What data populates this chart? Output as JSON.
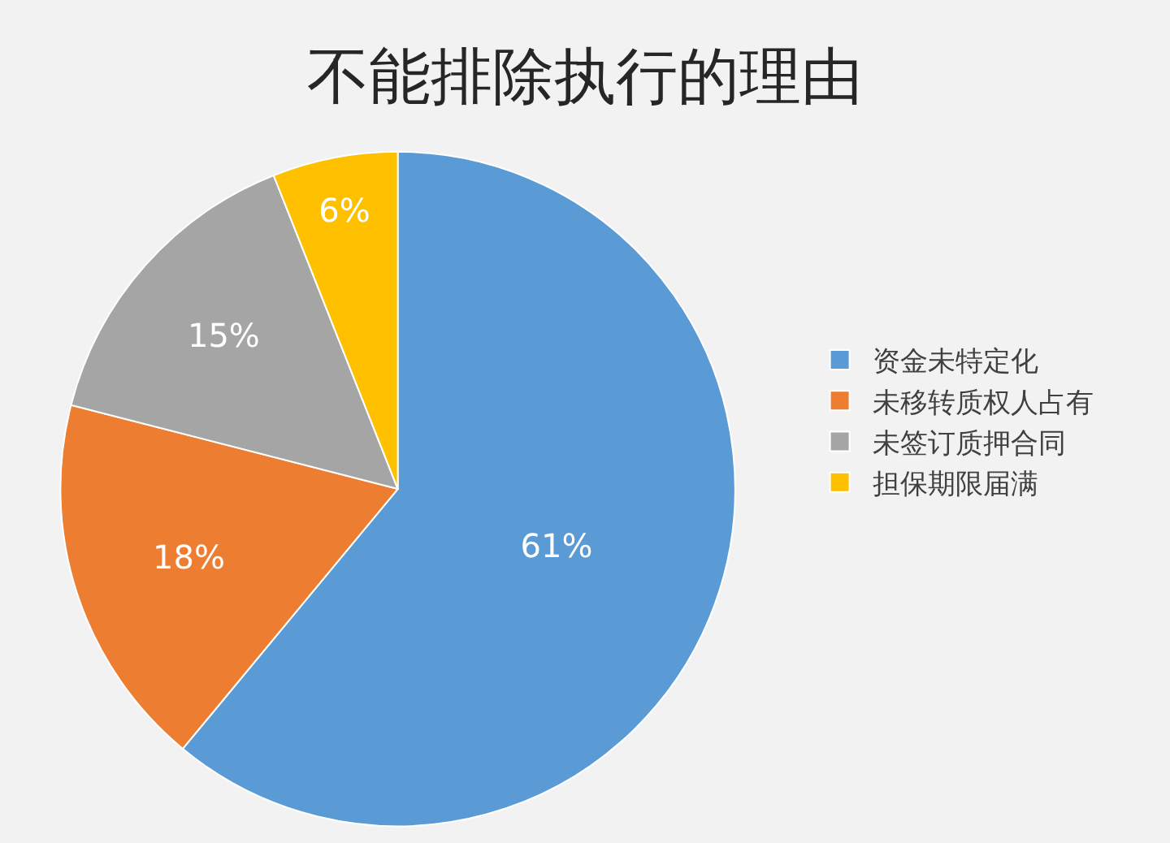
{
  "chart_data": {
    "type": "pie",
    "title": "不能排除执行的理由",
    "categories": [
      "资金未特定化",
      "未移转质权人占有",
      "未签订质押合同",
      "担保期限届满"
    ],
    "values": [
      61,
      18,
      15,
      6
    ],
    "value_labels": [
      "61%",
      "18%",
      "15%",
      "6%"
    ],
    "colors": [
      "#5b9bd5",
      "#ed7d31",
      "#a5a5a5",
      "#ffc000"
    ],
    "legend": "right"
  }
}
